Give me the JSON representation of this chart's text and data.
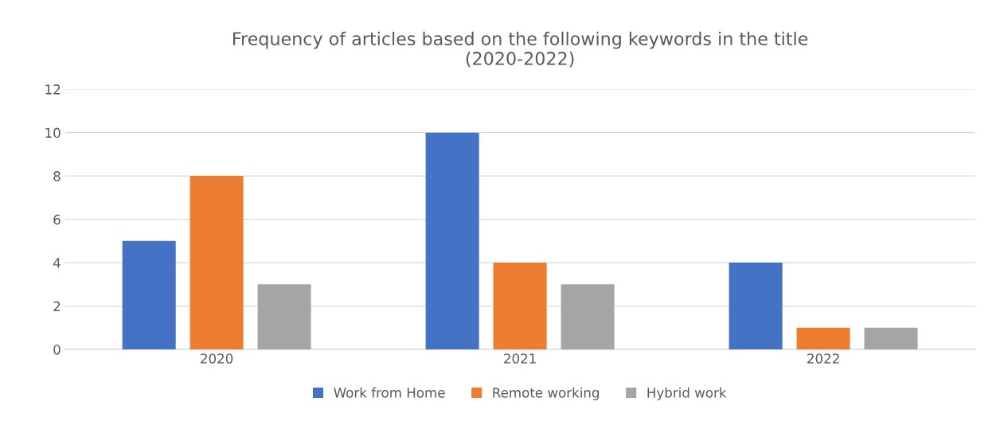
{
  "chart_data": {
    "type": "bar",
    "title": "Frequency of articles based on the following keywords in the title\n(2020-2022)",
    "categories": [
      "2020",
      "2021",
      "2022"
    ],
    "series": [
      {
        "name": "Work from Home",
        "color": "#4472c4",
        "values": [
          5,
          10,
          4
        ]
      },
      {
        "name": "Remote working",
        "color": "#ed7d31",
        "values": [
          8,
          4,
          1
        ]
      },
      {
        "name": "Hybrid work",
        "color": "#a5a5a5",
        "values": [
          3,
          3,
          1
        ]
      }
    ],
    "ylim": [
      0,
      12
    ],
    "yticks": [
      0,
      2,
      4,
      6,
      8,
      10,
      12
    ],
    "grid": "y",
    "legend": "bottom"
  }
}
